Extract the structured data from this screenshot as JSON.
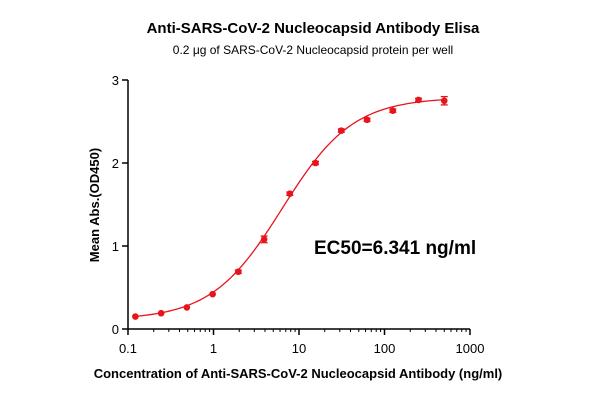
{
  "chart_data": {
    "type": "scatter",
    "title": "Anti-SARS-CoV-2 Nucleocapsid Antibody Elisa",
    "subtitle": "0.2 μg of SARS-CoV-2 Nucleocapsid protein per well",
    "xlabel": "Concentration of Anti-SARS-CoV-2 Nucleocapsid Antibody (ng/ml)",
    "ylabel": "Mean Abs.(OD450)",
    "x_scale": "log",
    "xlim": [
      0.1,
      1000
    ],
    "ylim": [
      0,
      3
    ],
    "x_ticks": [
      0.1,
      1,
      10,
      100,
      1000
    ],
    "x_tick_labels": [
      "0.1",
      "1",
      "10",
      "100",
      "1000"
    ],
    "y_ticks": [
      0,
      1,
      2,
      3
    ],
    "y_tick_labels": [
      "0",
      "1",
      "2",
      "3"
    ],
    "grid": false,
    "annotation": "EC50=6.341 ng/ml",
    "color": "#e8141b",
    "series": [
      {
        "x": [
          0.122,
          0.244,
          0.488,
          0.977,
          1.95,
          3.91,
          7.81,
          15.6,
          31.25,
          62.5,
          125,
          250,
          500
        ],
        "y": [
          0.15,
          0.19,
          0.26,
          0.42,
          0.69,
          1.08,
          1.63,
          2.0,
          2.39,
          2.52,
          2.63,
          2.76,
          2.75
        ],
        "error": [
          0.01,
          0.01,
          0.01,
          0.01,
          0.02,
          0.04,
          0.02,
          0.02,
          0.02,
          0.02,
          0.02,
          0.02,
          0.05
        ]
      }
    ],
    "fit": {
      "bottom": 0.11,
      "top": 2.79,
      "ec50": 6.341,
      "hill": 1.05
    }
  }
}
